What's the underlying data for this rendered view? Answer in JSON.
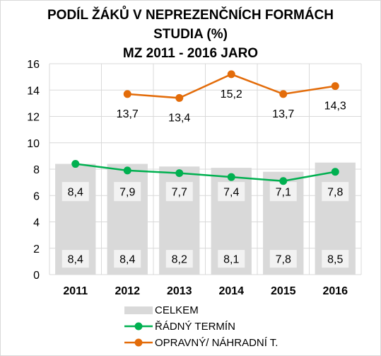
{
  "chart_data": {
    "type": "bar",
    "title": "PODÍL ŽÁKŮ V NEPREZENČNÍCH FORMÁCH\nSTUDIA (%)\nMZ 2011 - 2016 JARO",
    "categories": [
      "2011",
      "2012",
      "2013",
      "2014",
      "2015",
      "2016"
    ],
    "ylim": [
      0,
      16
    ],
    "yticks": [
      "0",
      "2",
      "4",
      "6",
      "8",
      "10",
      "12",
      "14",
      "16"
    ],
    "grid": true,
    "legend_position": "bottom",
    "series": [
      {
        "name": "CELKEM",
        "type": "bar",
        "color": "#d9d9d9",
        "values": [
          8.4,
          8.4,
          8.2,
          8.1,
          7.8,
          8.5
        ],
        "labels": [
          "8,4",
          "8,4",
          "8,2",
          "8,1",
          "7,8",
          "8,5"
        ]
      },
      {
        "name": "ŘÁDNÝ TERMÍN",
        "type": "line",
        "color": "#00b050",
        "values": [
          8.4,
          7.9,
          7.7,
          7.4,
          7.1,
          7.8
        ],
        "labels": [
          "8,4",
          "7,9",
          "7,7",
          "7,4",
          "7,1",
          "7,8"
        ]
      },
      {
        "name": "OPRAVNÝ/ NÁHRADNÍ T.",
        "type": "line",
        "color": "#e36c0a",
        "values": [
          null,
          13.7,
          13.4,
          15.2,
          13.7,
          14.3
        ],
        "labels": [
          "",
          "13,7",
          "13,4",
          "15,2",
          "13,7",
          "14,3"
        ]
      }
    ]
  }
}
